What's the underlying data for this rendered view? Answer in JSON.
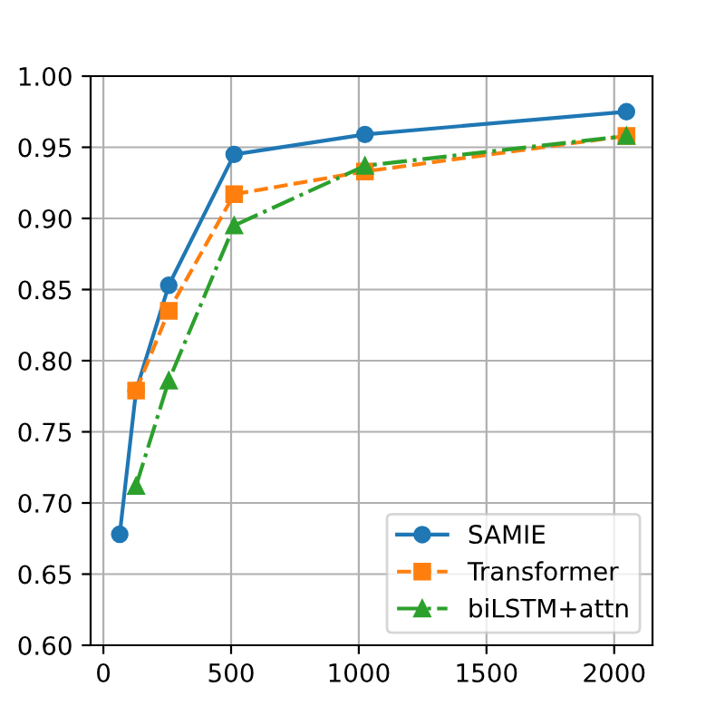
{
  "chart_data": {
    "type": "line",
    "x": [
      64,
      128,
      256,
      512,
      1024,
      2048
    ],
    "series": [
      {
        "name": "SAMIE",
        "color": "#1f77b4",
        "values": [
          0.678,
          0.779,
          0.853,
          0.945,
          0.959,
          0.975
        ],
        "marker": "circle",
        "line_style": "solid"
      },
      {
        "name": "Transformer",
        "color": "#ff7f0e",
        "values": [
          null,
          0.779,
          0.835,
          0.917,
          0.933,
          0.958
        ],
        "marker": "square",
        "line_style": "dashed"
      },
      {
        "name": "biLSTM+attn",
        "color": "#2ca02c",
        "values": [
          null,
          0.712,
          0.786,
          0.895,
          0.937,
          0.958
        ],
        "marker": "triangle",
        "line_style": "dashdot"
      }
    ],
    "xlim": [
      -50,
      2150
    ],
    "xticks": [
      0,
      500,
      1000,
      1500,
      2000
    ],
    "ylim": [
      0.6,
      1.0
    ],
    "yticks": [
      {
        "value": 0.6,
        "label": "0.60"
      },
      {
        "value": 0.65,
        "label": "0.65"
      },
      {
        "value": 0.7,
        "label": "0.70"
      },
      {
        "value": 0.75,
        "label": "0.75"
      },
      {
        "value": 0.8,
        "label": "0.80"
      },
      {
        "value": 0.85,
        "label": "0.85"
      },
      {
        "value": 0.9,
        "label": "0.90"
      },
      {
        "value": 0.95,
        "label": "0.95"
      },
      {
        "value": 1.0,
        "label": "1.00"
      }
    ],
    "grid": true,
    "legend": "bottom right"
  }
}
